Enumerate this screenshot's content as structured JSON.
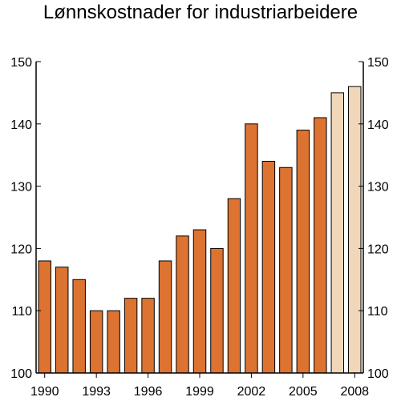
{
  "chart_data": {
    "type": "bar",
    "title": "Lønnskostnader for industriarbeidere",
    "xlabel": "",
    "ylabel": "",
    "categories": [
      "1990",
      "1991",
      "1992",
      "1993",
      "1994",
      "1995",
      "1996",
      "1997",
      "1998",
      "1999",
      "2000",
      "2001",
      "2002",
      "2003",
      "2004",
      "2005",
      "2006",
      "2007",
      "2008"
    ],
    "x_tick_labels": [
      "1990",
      "1993",
      "1996",
      "1999",
      "2002",
      "2005",
      "2008"
    ],
    "values": [
      118,
      117,
      115,
      110,
      110,
      112,
      112,
      118,
      122,
      123,
      120,
      128,
      140,
      134,
      133,
      139,
      141,
      145,
      146
    ],
    "projected_from": "2007",
    "ylim": [
      100,
      150
    ],
    "y_ticks": [
      100,
      110,
      120,
      130,
      140,
      150
    ],
    "y_axis_sides": "left and right",
    "grid": false,
    "legend": "none",
    "colors": {
      "bar": "#dc7330",
      "bar_projected": "#f1d7b9",
      "bar_outline": "#000000",
      "axis": "#000000"
    }
  }
}
